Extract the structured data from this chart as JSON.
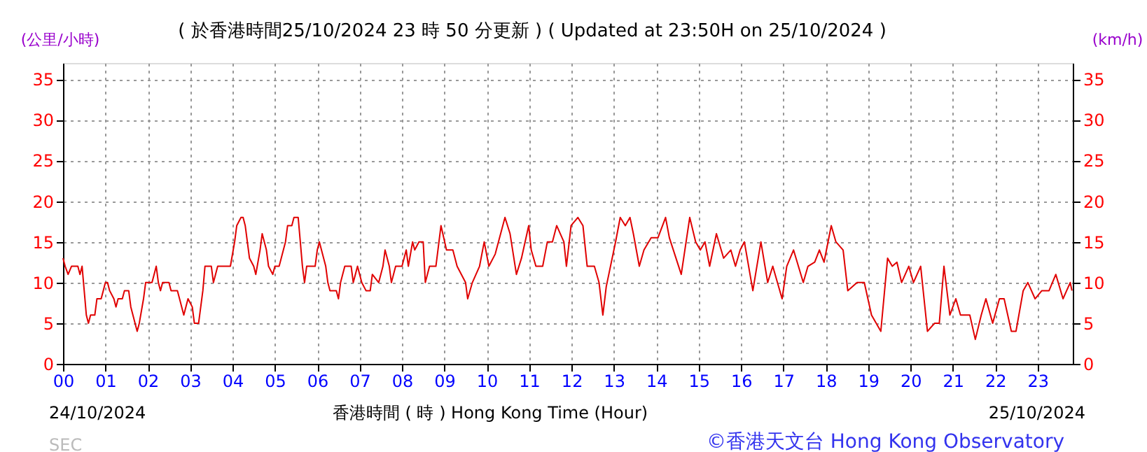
{
  "chart_data": {
    "type": "line",
    "title": "( 於香港時間25/10/2024 23 時 50 分更新 ) ( Updated at 23:50H on 25/10/2024 )",
    "xlabel": "香港時間 ( 時 )  Hong Kong Time (Hour)",
    "ylabel": "(公里/小時)",
    "y2label": "(km/h)",
    "annotations": [
      "24/10/2024",
      "25/10/2024",
      "©香港天文台 Hong Kong Observatory",
      "SEC"
    ],
    "x": [
      0.0,
      0.05,
      0.12,
      0.2,
      0.35,
      0.4,
      0.45,
      0.5,
      0.55,
      0.6,
      0.65,
      0.75,
      0.8,
      0.9,
      0.95,
      1.0,
      1.05,
      1.1,
      1.2,
      1.25,
      1.3,
      1.4,
      1.45,
      1.55,
      1.6,
      1.7,
      1.75,
      1.8,
      1.9,
      1.95,
      2.1,
      2.15,
      2.2,
      2.25,
      2.3,
      2.35,
      2.5,
      2.55,
      2.7,
      2.75,
      2.85,
      2.95,
      3.05,
      3.1,
      3.2,
      3.3,
      3.35,
      3.5,
      3.55,
      3.65,
      3.8,
      3.95,
      4.05,
      4.1,
      4.2,
      4.25,
      4.3,
      4.4,
      4.5,
      4.55,
      4.65,
      4.7,
      4.8,
      4.85,
      4.95,
      5.0,
      5.1,
      5.15,
      5.25,
      5.3,
      5.4,
      5.45,
      5.55,
      5.6,
      5.65,
      5.7,
      5.75,
      5.95,
      6.0,
      6.05,
      6.15,
      6.2,
      6.25,
      6.3,
      6.45,
      6.5,
      6.55,
      6.65,
      6.8,
      6.85,
      6.95,
      7.05,
      7.15,
      7.25,
      7.3,
      7.45,
      7.55,
      7.6,
      7.7,
      7.75,
      7.85,
      8.0,
      8.1,
      8.15,
      8.25,
      8.3,
      8.4,
      8.5,
      8.55,
      8.65,
      8.8,
      8.92,
      9.05,
      9.2,
      9.3,
      9.5,
      9.55,
      9.66,
      9.83,
      9.94,
      10.05,
      10.2,
      10.43,
      10.55,
      10.7,
      10.82,
      10.99,
      11.05,
      11.16,
      11.32,
      11.43,
      11.55,
      11.65,
      11.82,
      11.88,
      11.99,
      12.15,
      12.27,
      12.37,
      12.54,
      12.65,
      12.74,
      12.82,
      13.04,
      13.15,
      13.27,
      13.38,
      13.46,
      13.6,
      13.71,
      13.88,
      14.04,
      14.22,
      14.31,
      14.59,
      14.79,
      14.93,
      15.04,
      15.15,
      15.26,
      15.42,
      15.59,
      15.76,
      15.87,
      15.98,
      16.08,
      16.28,
      16.47,
      16.63,
      16.75,
      16.86,
      16.97,
      17.08,
      17.24,
      17.47,
      17.58,
      17.74,
      17.85,
      17.96,
      18.13,
      18.24,
      18.41,
      18.52,
      18.74,
      18.91,
      19.08,
      19.3,
      19.46,
      19.57,
      19.68,
      19.79,
      19.96,
      20.07,
      20.24,
      20.4,
      20.57,
      20.68,
      20.79,
      20.93,
      21.07,
      21.18,
      21.4,
      21.53,
      21.67,
      21.78,
      21.94,
      22.1,
      22.21,
      22.38,
      22.49,
      22.66,
      22.77,
      22.94,
      23.1,
      23.27,
      23.43,
      23.6,
      23.77,
      23.81
    ],
    "series": [
      {
        "color": "#e00000",
        "values": [
          13,
          12,
          11,
          12,
          12,
          11,
          12,
          9,
          6,
          5,
          6,
          6,
          8,
          8,
          9,
          10,
          10,
          9,
          8,
          7,
          8,
          8,
          9,
          9,
          7,
          5,
          4,
          5,
          8,
          10,
          10,
          11,
          12,
          10,
          9,
          10,
          10,
          9,
          9,
          8,
          6,
          8,
          7,
          5,
          5,
          9,
          12,
          12,
          10,
          12,
          12,
          12,
          15,
          17,
          18,
          18,
          17,
          13,
          12,
          11,
          14,
          16,
          14,
          12,
          11,
          12,
          12,
          13,
          15,
          17,
          17,
          18,
          18,
          15,
          12,
          10,
          12,
          12,
          14,
          15,
          13,
          12,
          10,
          9,
          9,
          8,
          10,
          12,
          12,
          10,
          12,
          10,
          9,
          9,
          11,
          10,
          12,
          14,
          12,
          10,
          12,
          12,
          14,
          12,
          15,
          14,
          15,
          15,
          10,
          12,
          12,
          17,
          14,
          14,
          12,
          10,
          8,
          10,
          12,
          15,
          12,
          13.5,
          18,
          16,
          11,
          13,
          17,
          14,
          12,
          12,
          15,
          15,
          17,
          15,
          12,
          17,
          18,
          17,
          12,
          12,
          10,
          6,
          9.5,
          15,
          18,
          17,
          18,
          16,
          12,
          14,
          15.5,
          15.5,
          18,
          15.5,
          11,
          18,
          15,
          14,
          15,
          12,
          16,
          13,
          14,
          12,
          14,
          15,
          9,
          15,
          10,
          12,
          10,
          8,
          12,
          14,
          10,
          12,
          12.5,
          14,
          12.5,
          17,
          15,
          14,
          9,
          10,
          10,
          6,
          4,
          13,
          12,
          12.5,
          10,
          12,
          10,
          12,
          4,
          5,
          5,
          12,
          6,
          8,
          6,
          6,
          3,
          6,
          8,
          5,
          8,
          8,
          4,
          4,
          9,
          10,
          8,
          9,
          9,
          11,
          8,
          10,
          9
        ]
      }
    ],
    "xlim": [
      0,
      23.83
    ],
    "xticks": [
      {
        "value": 0,
        "label": "00"
      },
      {
        "value": 1,
        "label": "01"
      },
      {
        "value": 2,
        "label": "02"
      },
      {
        "value": 3,
        "label": "03"
      },
      {
        "value": 4,
        "label": "04"
      },
      {
        "value": 5,
        "label": "05"
      },
      {
        "value": 6,
        "label": "06"
      },
      {
        "value": 7,
        "label": "07"
      },
      {
        "value": 8,
        "label": "08"
      },
      {
        "value": 9,
        "label": "09"
      },
      10,
      11,
      12,
      13,
      14,
      15,
      16,
      17,
      18,
      19,
      20,
      21,
      22,
      23
    ],
    "ylim": [
      0,
      37
    ],
    "yticks": [
      0,
      5,
      10,
      15,
      20,
      25,
      30,
      35
    ],
    "y2lim": [
      0,
      37
    ],
    "y2ticks": [
      0,
      5,
      10,
      15,
      20,
      25,
      30,
      35
    ],
    "grid": true
  }
}
